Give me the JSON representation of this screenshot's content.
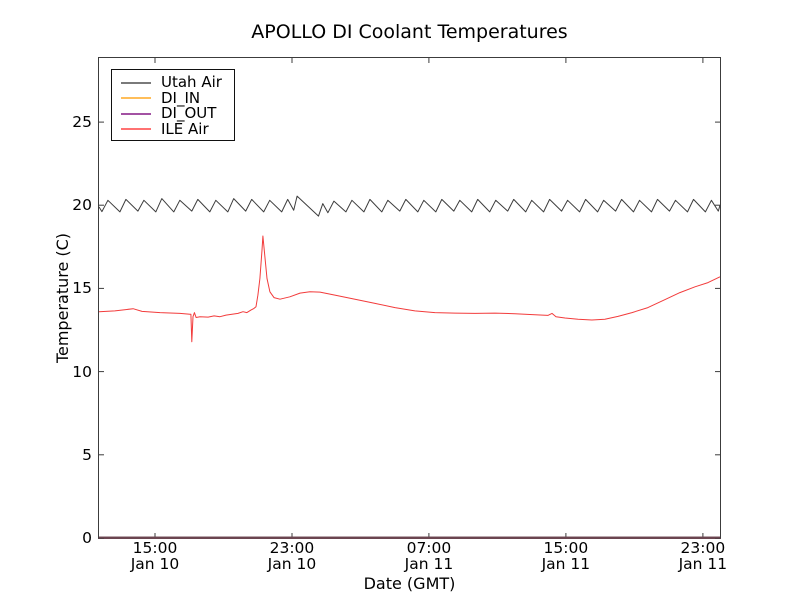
{
  "colors": {
    "axis": "#3c3c3c",
    "di_zero_overlap": "#6b4550",
    "legend_border": "#111111",
    "background": "#ffffff"
  },
  "chart_data": {
    "type": "line",
    "title": "APOLLO DI Coolant Temperatures",
    "xlabel": "Date (GMT)",
    "ylabel": "Temperature (C)",
    "grid": false,
    "legend_position": "upper left",
    "x_unit": "hours since Jan 10 00:00 GMT",
    "x_range": [
      11.73,
      48.0
    ],
    "y_range": [
      0,
      28.85
    ],
    "x_ticks": [
      {
        "t": 15,
        "label": "15:00",
        "sublabel": "Jan 10"
      },
      {
        "t": 23,
        "label": "23:00",
        "sublabel": "Jan 10"
      },
      {
        "t": 31,
        "label": "07:00",
        "sublabel": "Jan 11"
      },
      {
        "t": 39,
        "label": "15:00",
        "sublabel": "Jan 11"
      },
      {
        "t": 47,
        "label": "23:00",
        "sublabel": "Jan 11"
      }
    ],
    "y_ticks": [
      {
        "v": 0,
        "label": "0"
      },
      {
        "v": 5,
        "label": "5"
      },
      {
        "v": 10,
        "label": "10"
      },
      {
        "v": 15,
        "label": "15"
      },
      {
        "v": 20,
        "label": "20"
      },
      {
        "v": 25,
        "label": "25"
      }
    ],
    "series": [
      {
        "name": "Utah Air",
        "color": "#7a7a7a",
        "plot_color": "#3d3d3d",
        "width": 1,
        "points": [
          [
            11.73,
            19.9
          ],
          [
            11.9,
            19.62
          ],
          [
            12.25,
            20.3
          ],
          [
            12.95,
            19.6
          ],
          [
            13.3,
            20.35
          ],
          [
            14.0,
            19.65
          ],
          [
            14.35,
            20.3
          ],
          [
            15.05,
            19.6
          ],
          [
            15.4,
            20.4
          ],
          [
            16.1,
            19.6
          ],
          [
            16.45,
            20.3
          ],
          [
            17.15,
            19.65
          ],
          [
            17.5,
            20.35
          ],
          [
            18.2,
            19.6
          ],
          [
            18.55,
            20.3
          ],
          [
            19.25,
            19.6
          ],
          [
            19.6,
            20.4
          ],
          [
            20.3,
            19.65
          ],
          [
            20.65,
            20.35
          ],
          [
            21.35,
            19.6
          ],
          [
            21.7,
            20.3
          ],
          [
            22.4,
            19.6
          ],
          [
            22.75,
            20.35
          ],
          [
            23.1,
            19.7
          ],
          [
            23.3,
            20.55
          ],
          [
            24.55,
            19.35
          ],
          [
            24.8,
            20.1
          ],
          [
            25.1,
            19.55
          ],
          [
            25.45,
            20.25
          ],
          [
            26.15,
            19.6
          ],
          [
            26.5,
            20.3
          ],
          [
            27.2,
            19.6
          ],
          [
            27.55,
            20.35
          ],
          [
            28.25,
            19.6
          ],
          [
            28.6,
            20.3
          ],
          [
            29.3,
            19.65
          ],
          [
            29.65,
            20.35
          ],
          [
            30.35,
            19.6
          ],
          [
            30.7,
            20.3
          ],
          [
            31.4,
            19.6
          ],
          [
            31.75,
            20.35
          ],
          [
            32.45,
            19.65
          ],
          [
            32.8,
            20.3
          ],
          [
            33.5,
            19.6
          ],
          [
            33.85,
            20.35
          ],
          [
            34.55,
            19.6
          ],
          [
            34.9,
            20.3
          ],
          [
            35.6,
            19.65
          ],
          [
            35.95,
            20.35
          ],
          [
            36.65,
            19.6
          ],
          [
            37.0,
            20.3
          ],
          [
            37.7,
            19.6
          ],
          [
            38.05,
            20.35
          ],
          [
            38.75,
            19.65
          ],
          [
            39.1,
            20.3
          ],
          [
            39.8,
            19.6
          ],
          [
            40.15,
            20.35
          ],
          [
            40.85,
            19.6
          ],
          [
            41.2,
            20.3
          ],
          [
            41.9,
            19.65
          ],
          [
            42.25,
            20.35
          ],
          [
            42.95,
            19.6
          ],
          [
            43.3,
            20.3
          ],
          [
            44.0,
            19.6
          ],
          [
            44.35,
            20.35
          ],
          [
            45.05,
            19.65
          ],
          [
            45.4,
            20.3
          ],
          [
            46.1,
            19.6
          ],
          [
            46.45,
            20.35
          ],
          [
            47.15,
            19.6
          ],
          [
            47.5,
            20.3
          ],
          [
            47.9,
            19.65
          ],
          [
            48.0,
            20.0
          ]
        ]
      },
      {
        "name": "DI_IN",
        "color": "#ffbe5a",
        "plot_color": "#6b4550",
        "width": 1.4,
        "points": [
          [
            11.73,
            0
          ],
          [
            48.0,
            0
          ]
        ]
      },
      {
        "name": "DI_OUT",
        "color": "#a352a3",
        "plot_color": "#6b4550",
        "width": 1.4,
        "points": [
          [
            11.73,
            0
          ],
          [
            48.0,
            0
          ]
        ]
      },
      {
        "name": "ILE Air",
        "color": "#ff7272",
        "plot_color": "#f23b3b",
        "width": 1,
        "points": [
          [
            11.73,
            13.6
          ],
          [
            12.66,
            13.65
          ],
          [
            13.72,
            13.78
          ],
          [
            14.24,
            13.62
          ],
          [
            15.29,
            13.55
          ],
          [
            16.46,
            13.5
          ],
          [
            17.04,
            13.45
          ],
          [
            17.1,
            13.45
          ],
          [
            17.15,
            11.8
          ],
          [
            17.22,
            13.3
          ],
          [
            17.3,
            13.55
          ],
          [
            17.4,
            13.25
          ],
          [
            17.63,
            13.3
          ],
          [
            18.1,
            13.28
          ],
          [
            18.45,
            13.35
          ],
          [
            18.8,
            13.3
          ],
          [
            19.15,
            13.4
          ],
          [
            19.5,
            13.45
          ],
          [
            19.85,
            13.5
          ],
          [
            20.14,
            13.6
          ],
          [
            20.37,
            13.55
          ],
          [
            20.6,
            13.7
          ],
          [
            20.78,
            13.8
          ],
          [
            20.9,
            13.9
          ],
          [
            21.01,
            14.6
          ],
          [
            21.13,
            15.6
          ],
          [
            21.25,
            17.3
          ],
          [
            21.3,
            18.15
          ],
          [
            21.42,
            16.9
          ],
          [
            21.54,
            15.6
          ],
          [
            21.71,
            14.8
          ],
          [
            21.95,
            14.45
          ],
          [
            22.3,
            14.35
          ],
          [
            22.88,
            14.5
          ],
          [
            23.47,
            14.72
          ],
          [
            24.05,
            14.8
          ],
          [
            24.64,
            14.78
          ],
          [
            25.51,
            14.6
          ],
          [
            26.68,
            14.35
          ],
          [
            27.85,
            14.1
          ],
          [
            29.02,
            13.85
          ],
          [
            30.18,
            13.65
          ],
          [
            31.35,
            13.55
          ],
          [
            32.52,
            13.52
          ],
          [
            33.69,
            13.5
          ],
          [
            34.86,
            13.52
          ],
          [
            36.02,
            13.48
          ],
          [
            37.19,
            13.42
          ],
          [
            37.95,
            13.38
          ],
          [
            38.19,
            13.5
          ],
          [
            38.42,
            13.3
          ],
          [
            38.95,
            13.22
          ],
          [
            39.71,
            13.15
          ],
          [
            40.52,
            13.1
          ],
          [
            41.28,
            13.15
          ],
          [
            42.04,
            13.32
          ],
          [
            42.86,
            13.55
          ],
          [
            43.79,
            13.85
          ],
          [
            44.73,
            14.3
          ],
          [
            45.66,
            14.75
          ],
          [
            46.54,
            15.1
          ],
          [
            47.3,
            15.35
          ],
          [
            48.0,
            15.7
          ]
        ]
      }
    ]
  }
}
